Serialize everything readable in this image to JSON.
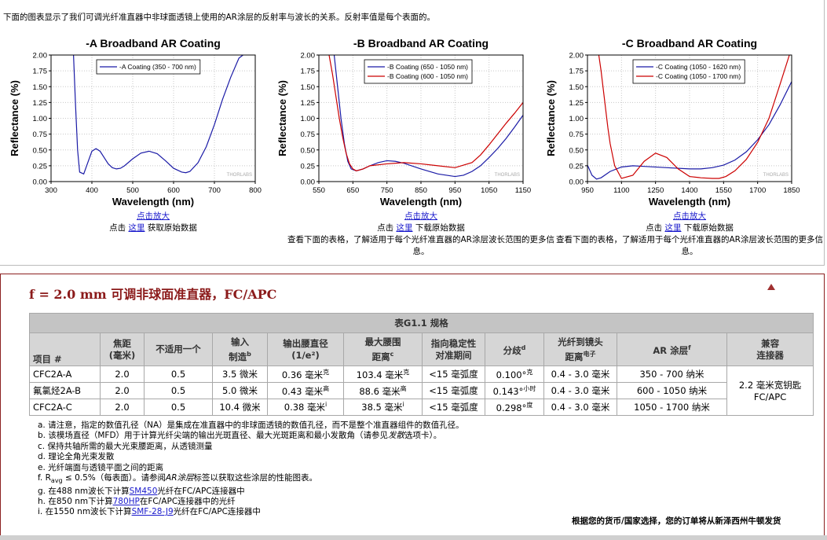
{
  "intro": "下面的图表显示了我们可调光纤准直器中非球面透镜上使用的AR涂层的反射率与波长的关系。反射率值是每个表面的。",
  "chart_data": [
    {
      "type": "line",
      "title": "-A Broadband AR Coating",
      "xlabel": "Wavelength (nm)",
      "ylabel": "Reflectance (%)",
      "watermark": "THORLABS",
      "xlim": [
        300,
        800
      ],
      "xticks": [
        300,
        400,
        500,
        600,
        700,
        800
      ],
      "ylim": [
        0,
        2
      ],
      "yticks": [
        {
          "value": 0,
          "label": "0.00"
        },
        0.25,
        {
          "value": 0.5,
          "label": "0.50"
        },
        0.75,
        {
          "value": 1,
          "label": "1.00"
        },
        1.25,
        {
          "value": 1.5,
          "label": "1.50"
        },
        1.75,
        {
          "value": 2,
          "label": "2.00"
        }
      ],
      "grid": true,
      "legend": "upper left",
      "series": [
        {
          "name": "-A Coating (350 - 700 nm)",
          "color": "#1a1aa6",
          "x": [
            355,
            360,
            365,
            370,
            380,
            390,
            400,
            410,
            420,
            430,
            440,
            450,
            460,
            470,
            480,
            500,
            520,
            540,
            560,
            580,
            600,
            620,
            630,
            640,
            660,
            680,
            700,
            720,
            740,
            760,
            770
          ],
          "values": [
            2.0,
            1.2,
            0.5,
            0.15,
            0.12,
            0.3,
            0.48,
            0.52,
            0.48,
            0.38,
            0.28,
            0.22,
            0.2,
            0.21,
            0.25,
            0.36,
            0.45,
            0.48,
            0.44,
            0.33,
            0.21,
            0.15,
            0.14,
            0.16,
            0.3,
            0.55,
            0.9,
            1.3,
            1.65,
            1.95,
            2.0
          ]
        }
      ]
    },
    {
      "type": "line",
      "title": "-B Broadband AR Coating",
      "xlabel": "Wavelength (nm)",
      "ylabel": "Reflectance (%)",
      "watermark": "THORLABS",
      "xlim": [
        550,
        1150
      ],
      "xticks": [
        550,
        650,
        750,
        850,
        950,
        1050,
        1150
      ],
      "ylim": [
        0,
        2
      ],
      "yticks": [
        {
          "value": 0,
          "label": "0.00"
        },
        0.25,
        {
          "value": 0.5,
          "label": "0.50"
        },
        0.75,
        {
          "value": 1,
          "label": "1.00"
        },
        1.25,
        {
          "value": 1.5,
          "label": "1.50"
        },
        1.75,
        {
          "value": 2,
          "label": "2.00"
        }
      ],
      "grid": true,
      "legend": "upper left",
      "series": [
        {
          "name": "-B Coating (650 - 1050 nm)",
          "color": "#1a1aa6",
          "x": [
            595,
            605,
            615,
            625,
            635,
            645,
            660,
            680,
            700,
            725,
            750,
            775,
            800,
            850,
            900,
            950,
            975,
            1000,
            1025,
            1050,
            1075,
            1100,
            1125,
            1150
          ],
          "values": [
            2.0,
            1.5,
            1.0,
            0.6,
            0.32,
            0.2,
            0.17,
            0.2,
            0.25,
            0.3,
            0.33,
            0.32,
            0.29,
            0.2,
            0.12,
            0.08,
            0.1,
            0.16,
            0.25,
            0.38,
            0.52,
            0.68,
            0.86,
            1.05
          ]
        },
        {
          "name": "-B Coating (600 - 1050 nm)",
          "color": "#cc0000",
          "x": [
            580,
            590,
            600,
            610,
            620,
            630,
            640,
            650,
            660,
            680,
            700,
            750,
            800,
            850,
            900,
            950,
            1000,
            1025,
            1050,
            1075,
            1100,
            1125,
            1150
          ],
          "values": [
            2.0,
            1.7,
            1.35,
            1.0,
            0.7,
            0.45,
            0.28,
            0.2,
            0.17,
            0.2,
            0.25,
            0.28,
            0.3,
            0.28,
            0.25,
            0.22,
            0.3,
            0.42,
            0.58,
            0.75,
            0.92,
            1.08,
            1.25
          ]
        }
      ]
    },
    {
      "type": "line",
      "title": "-C Broadband AR Coating",
      "xlabel": "Wavelength (nm)",
      "ylabel": "Reflectance (%)",
      "watermark": "THORLABS",
      "xlim": [
        950,
        1850
      ],
      "xticks": [
        950,
        1100,
        1250,
        1400,
        1550,
        1700,
        1850
      ],
      "ylim": [
        0,
        2
      ],
      "yticks": [
        {
          "value": 0,
          "label": "0.00"
        },
        0.25,
        {
          "value": 0.5,
          "label": "0.50"
        },
        0.75,
        {
          "value": 1,
          "label": "1.00"
        },
        1.25,
        {
          "value": 1.5,
          "label": "1.50"
        },
        1.75,
        {
          "value": 2,
          "label": "2.00"
        }
      ],
      "grid": true,
      "legend": "upper left",
      "series": [
        {
          "name": "-C Coating (1050 - 1620 nm)",
          "color": "#1a1aa6",
          "x": [
            950,
            970,
            990,
            1010,
            1050,
            1100,
            1150,
            1200,
            1300,
            1400,
            1450,
            1500,
            1550,
            1600,
            1650,
            1700,
            1750,
            1800,
            1850
          ],
          "values": [
            0.26,
            0.1,
            0.04,
            0.06,
            0.16,
            0.23,
            0.25,
            0.24,
            0.22,
            0.2,
            0.2,
            0.22,
            0.26,
            0.34,
            0.47,
            0.66,
            0.9,
            1.22,
            1.58
          ]
        },
        {
          "name": "-C Coating (1050 - 1700 nm)",
          "color": "#cc0000",
          "x": [
            1000,
            1010,
            1020,
            1030,
            1040,
            1050,
            1070,
            1100,
            1150,
            1200,
            1250,
            1300,
            1350,
            1400,
            1450,
            1500,
            1530,
            1560,
            1600,
            1650,
            1700,
            1750,
            1800,
            1840
          ],
          "values": [
            2.0,
            1.75,
            1.45,
            1.15,
            0.85,
            0.6,
            0.25,
            0.05,
            0.1,
            0.32,
            0.45,
            0.38,
            0.2,
            0.08,
            0.06,
            0.05,
            0.05,
            0.08,
            0.17,
            0.35,
            0.62,
            1.0,
            1.55,
            2.0
          ]
        }
      ]
    }
  ],
  "chart_notes": [
    {
      "zoom": "点击放大",
      "pre": "点击",
      "link": "这里",
      "post": "获取原始数据"
    },
    {
      "zoom": "点击放大",
      "pre": "点击",
      "link": "这里",
      "post": "下载原始数据",
      "more": "查看下面的表格，了解适用于每个光纤准直器的AR涂层波长范围的更多信息。"
    },
    {
      "zoom": "点击放大",
      "pre": "点击",
      "link": "这里",
      "post": "下载原始数据",
      "more": "查看下面的表格，了解适用于每个光纤准直器的AR涂层波长范围的更多信息。"
    }
  ],
  "section_title": "f = 2.0 mm 可调非球面准直器，FC/APC",
  "table": {
    "caption": "表G1.1 规格",
    "headers": [
      {
        "lines": [
          "项目 #"
        ]
      },
      {
        "lines": [
          "焦距",
          "(毫米)"
        ]
      },
      {
        "lines": [
          "不适用一个"
        ]
      },
      {
        "lines": [
          "输入",
          "制造"
        ],
        "sup": "b"
      },
      {
        "lines": [
          "输出腰直径",
          "(1/e²)"
        ]
      },
      {
        "lines": [
          "最大腰围",
          "距离"
        ],
        "sup": "c"
      },
      {
        "lines": [
          "指向稳定性",
          "对准期间"
        ]
      },
      {
        "lines": [
          "分歧"
        ],
        "sup": "d"
      },
      {
        "lines": [
          "光纤到镜头",
          "距离"
        ],
        "sup": "电子"
      },
      {
        "lines": [
          "AR 涂层"
        ],
        "sup": "f"
      },
      {
        "lines": [
          "兼容",
          "连接器"
        ]
      }
    ],
    "rows": [
      [
        "CFC2A-A",
        "2.0",
        "0.5",
        "3.5 微米",
        {
          "text": "0.36 毫米",
          "sup": "克"
        },
        {
          "text": "103.4 毫米",
          "sup": "克"
        },
        "<15 毫弧度",
        {
          "text": "0.100°",
          "sup": "克"
        },
        "0.4 - 3.0 毫米",
        "350 - 700 纳米"
      ],
      [
        "氟氯烃2A-B",
        "2.0",
        "0.5",
        "5.0 微米",
        {
          "text": "0.43 毫米",
          "sup": "高"
        },
        {
          "text": "88.6 毫米",
          "sup": "高"
        },
        "<15 毫弧度",
        {
          "text": "0.143°",
          "sup": "小时"
        },
        "0.4 - 3.0 毫米",
        "600 - 1050 纳米"
      ],
      [
        "CFC2A-C",
        "2.0",
        "0.5",
        "10.4 微米",
        {
          "text": "0.38 毫米",
          "sup": "i"
        },
        {
          "text": "38.5 毫米",
          "sup": "i"
        },
        "<15 毫弧度",
        {
          "text": "0.298°",
          "sup": "度"
        },
        "0.4 - 3.0 毫米",
        "1050 - 1700 纳米"
      ]
    ],
    "compat": [
      "2.2 毫米宽钥匙",
      "FC/APC"
    ]
  },
  "footnotes": [
    {
      "label": "a.",
      "parts": [
        {
          "text": "请注意，指定的数值孔径（NA）是集成在准直器中的非球面透镜的数值孔径，而不是整个准直器组件的数值孔径。"
        }
      ]
    },
    {
      "label": "b.",
      "parts": [
        {
          "text": "该模场直径（MFD）用于计算光纤尖端的输出光斑直径、最大光斑距离和最小发散角（请参见"
        },
        {
          "text": "发散",
          "style": "i"
        },
        {
          "text": "选项卡）。"
        }
      ]
    },
    {
      "label": "c.",
      "parts": [
        {
          "text": "保持共轴所需的最大光束腰距离，从透镜测量"
        }
      ]
    },
    {
      "label": "d.",
      "parts": [
        {
          "text": "理论全角光束发散"
        }
      ]
    },
    {
      "label": "e.",
      "parts": [
        {
          "text": "光纤端面与透镜平面之间的距离"
        }
      ]
    },
    {
      "label": "f.",
      "parts": [
        {
          "text": "R"
        },
        {
          "text": "avg",
          "style": "sub"
        },
        {
          "text": " ≤ 0.5%（每表面）。请参阅"
        },
        {
          "text": "AR涂层",
          "style": "i"
        },
        {
          "text": "标签以获取这些涂层的性能图表。"
        }
      ]
    },
    {
      "label": "g.",
      "parts": [
        {
          "text": "在488 nm波长下计算"
        },
        {
          "text": "SM450",
          "style": "link"
        },
        {
          "text": "光纤在FC/APC连接器中"
        }
      ]
    },
    {
      "label": "h.",
      "parts": [
        {
          "text": "在850 nm下计算"
        },
        {
          "text": "780HP",
          "style": "link"
        },
        {
          "text": "在FC/APC连接器中的光纤"
        }
      ]
    },
    {
      "label": "i.",
      "parts": [
        {
          "text": "在1550 nm波长下计算"
        },
        {
          "text": "SMF-28-J9",
          "style": "link"
        },
        {
          "text": "光纤在FC/APC连接器中"
        }
      ]
    }
  ],
  "footer": "根据您的货币/国家选择，您的订单将从新泽西州牛顿发货"
}
